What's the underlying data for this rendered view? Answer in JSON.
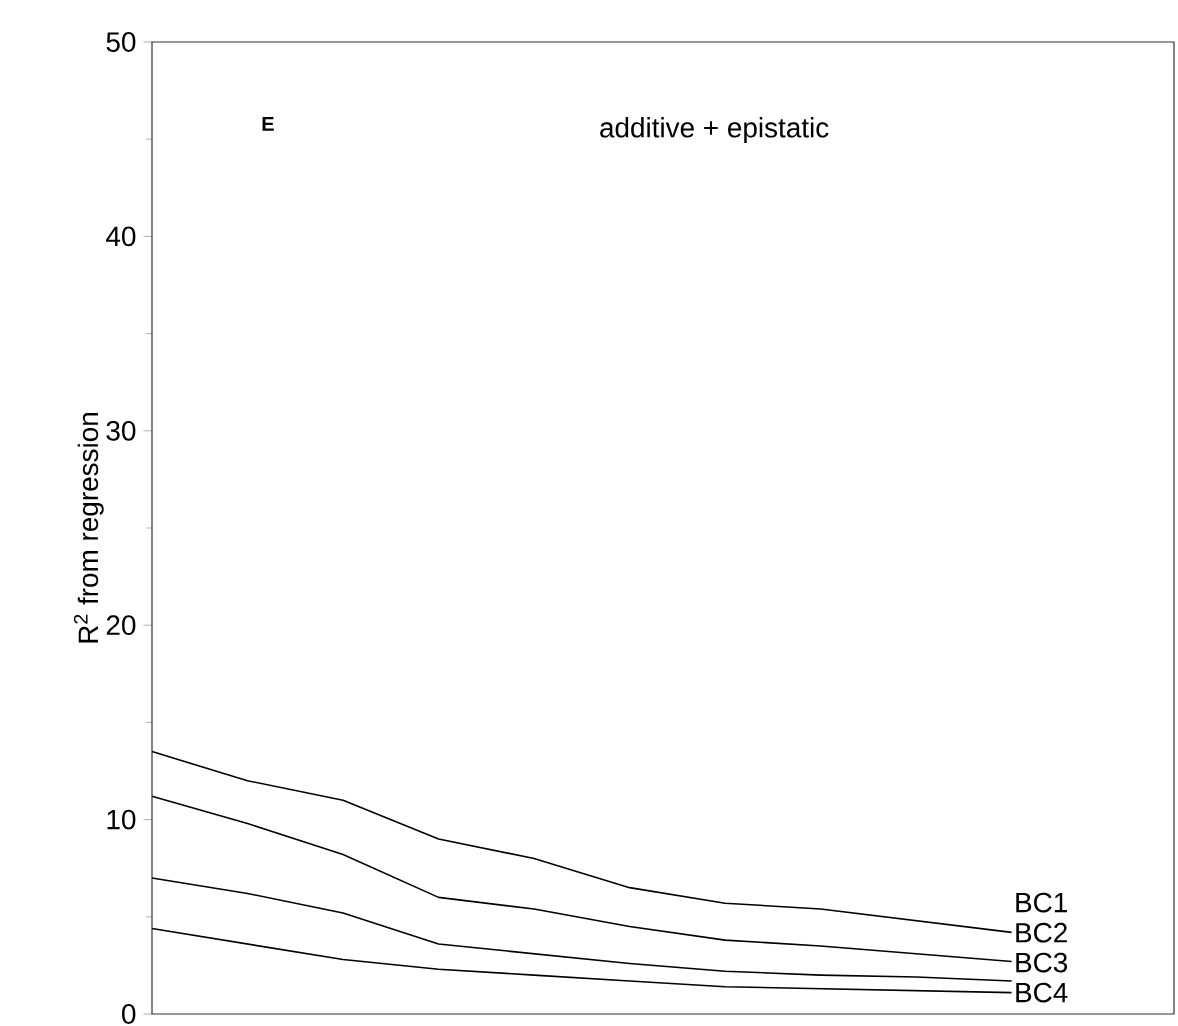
{
  "chart_data": {
    "type": "line",
    "ylabel": "R$^{2}$ from regression",
    "annotations": [
      "E",
      "additive + epistatic"
    ],
    "categories": [
      null,
      null,
      null,
      null,
      null,
      null,
      null,
      null,
      null,
      null
    ],
    "series": [
      {
        "name": "BC1",
        "color": "#000000",
        "values": [
          13.5,
          12.0,
          11.0,
          9.0,
          8.0,
          6.5,
          5.7,
          5.4,
          4.8,
          4.2
        ]
      },
      {
        "name": "BC2",
        "color": "#000000",
        "values": [
          11.2,
          9.8,
          8.2,
          6.0,
          5.4,
          4.5,
          3.8,
          3.5,
          3.1,
          2.7
        ]
      },
      {
        "name": "BC3",
        "color": "#000000",
        "values": [
          7.0,
          6.2,
          5.2,
          3.6,
          3.1,
          2.6,
          2.2,
          2.0,
          1.9,
          1.7
        ]
      },
      {
        "name": "BC4",
        "color": "#000000",
        "values": [
          4.4,
          3.6,
          2.8,
          2.3,
          2.0,
          1.7,
          1.4,
          1.3,
          1.2,
          1.1
        ]
      }
    ],
    "ylim": [
      0,
      50
    ],
    "yticks": [
      0,
      10,
      20,
      30,
      40,
      50
    ],
    "grid": false,
    "tick_labels": "y",
    "marker": "none",
    "line_style": "solid"
  }
}
